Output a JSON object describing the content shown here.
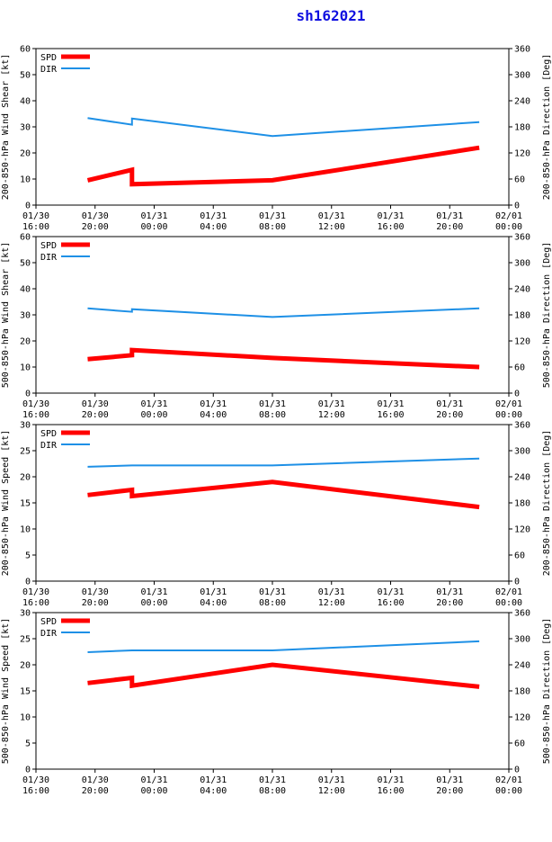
{
  "title": "sh162021",
  "colors": {
    "spd": "#ff0000",
    "dir": "#1e90e6",
    "title": "#1010e0"
  },
  "legend": {
    "spd": "SPD",
    "dir": "DIR"
  },
  "x_ticks": [
    [
      "01/30",
      "16:00"
    ],
    [
      "01/30",
      "20:00"
    ],
    [
      "01/31",
      "00:00"
    ],
    [
      "01/31",
      "04:00"
    ],
    [
      "01/31",
      "08:00"
    ],
    [
      "01/31",
      "12:00"
    ],
    [
      "01/31",
      "16:00"
    ],
    [
      "01/31",
      "20:00"
    ],
    [
      "02/01",
      "00:00"
    ]
  ],
  "chart_data": [
    {
      "type": "line",
      "ylabel": "200-850-hPa Wind Shear [kt]",
      "y2label": "200-850-hPa Direction [Deg]",
      "ylim": [
        0,
        60
      ],
      "yticks": [
        0,
        10,
        20,
        30,
        40,
        50,
        60
      ],
      "y2lim": [
        0,
        360
      ],
      "y2ticks": [
        0,
        60,
        120,
        180,
        240,
        300,
        360
      ],
      "xlim_hours": [
        0,
        32
      ],
      "series": [
        {
          "name": "SPD",
          "axis": "left",
          "x_hours": [
            3.5,
            6.5,
            6.5,
            16,
            30
          ],
          "values": [
            9.5,
            13.5,
            8,
            9.5,
            22
          ]
        },
        {
          "name": "DIR",
          "axis": "right",
          "x_hours": [
            3.5,
            6.5,
            6.5,
            16,
            30
          ],
          "values": [
            200,
            185,
            199,
            159,
            191
          ]
        }
      ]
    },
    {
      "type": "line",
      "ylabel": "500-850-hPa Wind Shear [kt]",
      "y2label": "500-850-hPa Direction [Deg]",
      "ylim": [
        0,
        60
      ],
      "yticks": [
        0,
        10,
        20,
        30,
        40,
        50,
        60
      ],
      "y2lim": [
        0,
        360
      ],
      "y2ticks": [
        0,
        60,
        120,
        180,
        240,
        300,
        360
      ],
      "xlim_hours": [
        0,
        32
      ],
      "series": [
        {
          "name": "SPD",
          "axis": "left",
          "x_hours": [
            3.5,
            6.5,
            6.5,
            16,
            30
          ],
          "values": [
            13,
            14.5,
            16.5,
            13.5,
            10
          ]
        },
        {
          "name": "DIR",
          "axis": "right",
          "x_hours": [
            3.5,
            6.5,
            6.5,
            16,
            30
          ],
          "values": [
            195,
            187,
            193,
            175,
            195
          ]
        }
      ]
    },
    {
      "type": "line",
      "ylabel": "200-850-hPa Wind Speed [kt]",
      "y2label": "200-850-hPa Direction [Deg]",
      "ylim": [
        0,
        30
      ],
      "yticks": [
        0,
        5,
        10,
        15,
        20,
        25,
        30
      ],
      "y2lim": [
        0,
        360
      ],
      "y2ticks": [
        0,
        60,
        120,
        180,
        240,
        300,
        360
      ],
      "xlim_hours": [
        0,
        32
      ],
      "series": [
        {
          "name": "SPD",
          "axis": "left",
          "x_hours": [
            3.5,
            6.5,
            6.5,
            16,
            30
          ],
          "values": [
            16.5,
            17.5,
            16.3,
            19,
            14.2
          ]
        },
        {
          "name": "DIR",
          "axis": "right",
          "x_hours": [
            3.5,
            6.5,
            16,
            30
          ],
          "values": [
            263,
            266,
            266,
            282
          ]
        }
      ]
    },
    {
      "type": "line",
      "ylabel": "500-850-hPa Wind Speed [kt]",
      "y2label": "500-850-hPa Direction [Deg]",
      "ylim": [
        0,
        30
      ],
      "yticks": [
        0,
        5,
        10,
        15,
        20,
        25,
        30
      ],
      "y2lim": [
        0,
        360
      ],
      "y2ticks": [
        0,
        60,
        120,
        180,
        240,
        300,
        360
      ],
      "xlim_hours": [
        0,
        32
      ],
      "series": [
        {
          "name": "SPD",
          "axis": "left",
          "x_hours": [
            3.5,
            6.5,
            6.5,
            16,
            30
          ],
          "values": [
            16.5,
            17.5,
            16,
            20,
            15.8
          ]
        },
        {
          "name": "DIR",
          "axis": "right",
          "x_hours": [
            3.5,
            6.5,
            16,
            30
          ],
          "values": [
            269,
            273,
            273,
            294
          ]
        }
      ]
    }
  ]
}
